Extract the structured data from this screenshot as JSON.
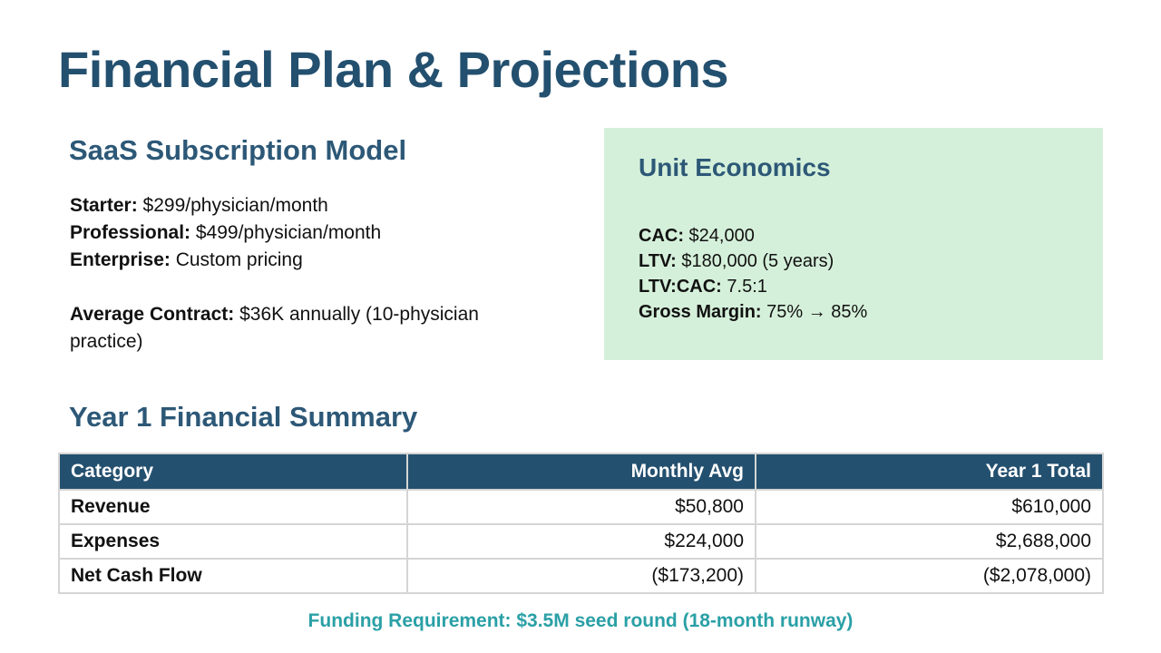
{
  "slide": {
    "title": "Financial Plan & Projections"
  },
  "saas_model": {
    "heading": "SaaS Subscription Model",
    "tiers": [
      {
        "label": "Starter:",
        "value": " $299/physician/month"
      },
      {
        "label": "Professional:",
        "value": " $499/physician/month"
      },
      {
        "label": "Enterprise:",
        "value": " Custom pricing"
      }
    ],
    "average_contract": {
      "label": "Average Contract:",
      "value": " $36K annually (10-physician practice)"
    }
  },
  "unit_economics": {
    "heading": "Unit Economics",
    "metrics": [
      {
        "label": "CAC:",
        "value": " $24,000"
      },
      {
        "label": "LTV:",
        "value": " $180,000 (5 years)"
      },
      {
        "label": "LTV:CAC:",
        "value": " 7.5:1"
      },
      {
        "label": "Gross Margin:",
        "value": " 75% → 85%"
      }
    ]
  },
  "summary": {
    "heading": "Year 1 Financial Summary",
    "columns": [
      "Category",
      "Monthly Avg",
      "Year 1 Total"
    ],
    "rows": [
      [
        "Revenue",
        "$50,800",
        "$610,000"
      ],
      [
        "Expenses",
        "$224,000",
        "$2,688,000"
      ],
      [
        "Net Cash Flow",
        "($173,200)",
        "($2,078,000)"
      ]
    ]
  },
  "funding": {
    "text": "Funding Requirement: $3.5M seed round (18-month runway)"
  },
  "colors": {
    "title_blue": "#24506f",
    "heading_blue": "#2d5877",
    "box_green": "#d5f0da",
    "header_row": "#24506f",
    "funding_teal": "#2aa0a6"
  }
}
